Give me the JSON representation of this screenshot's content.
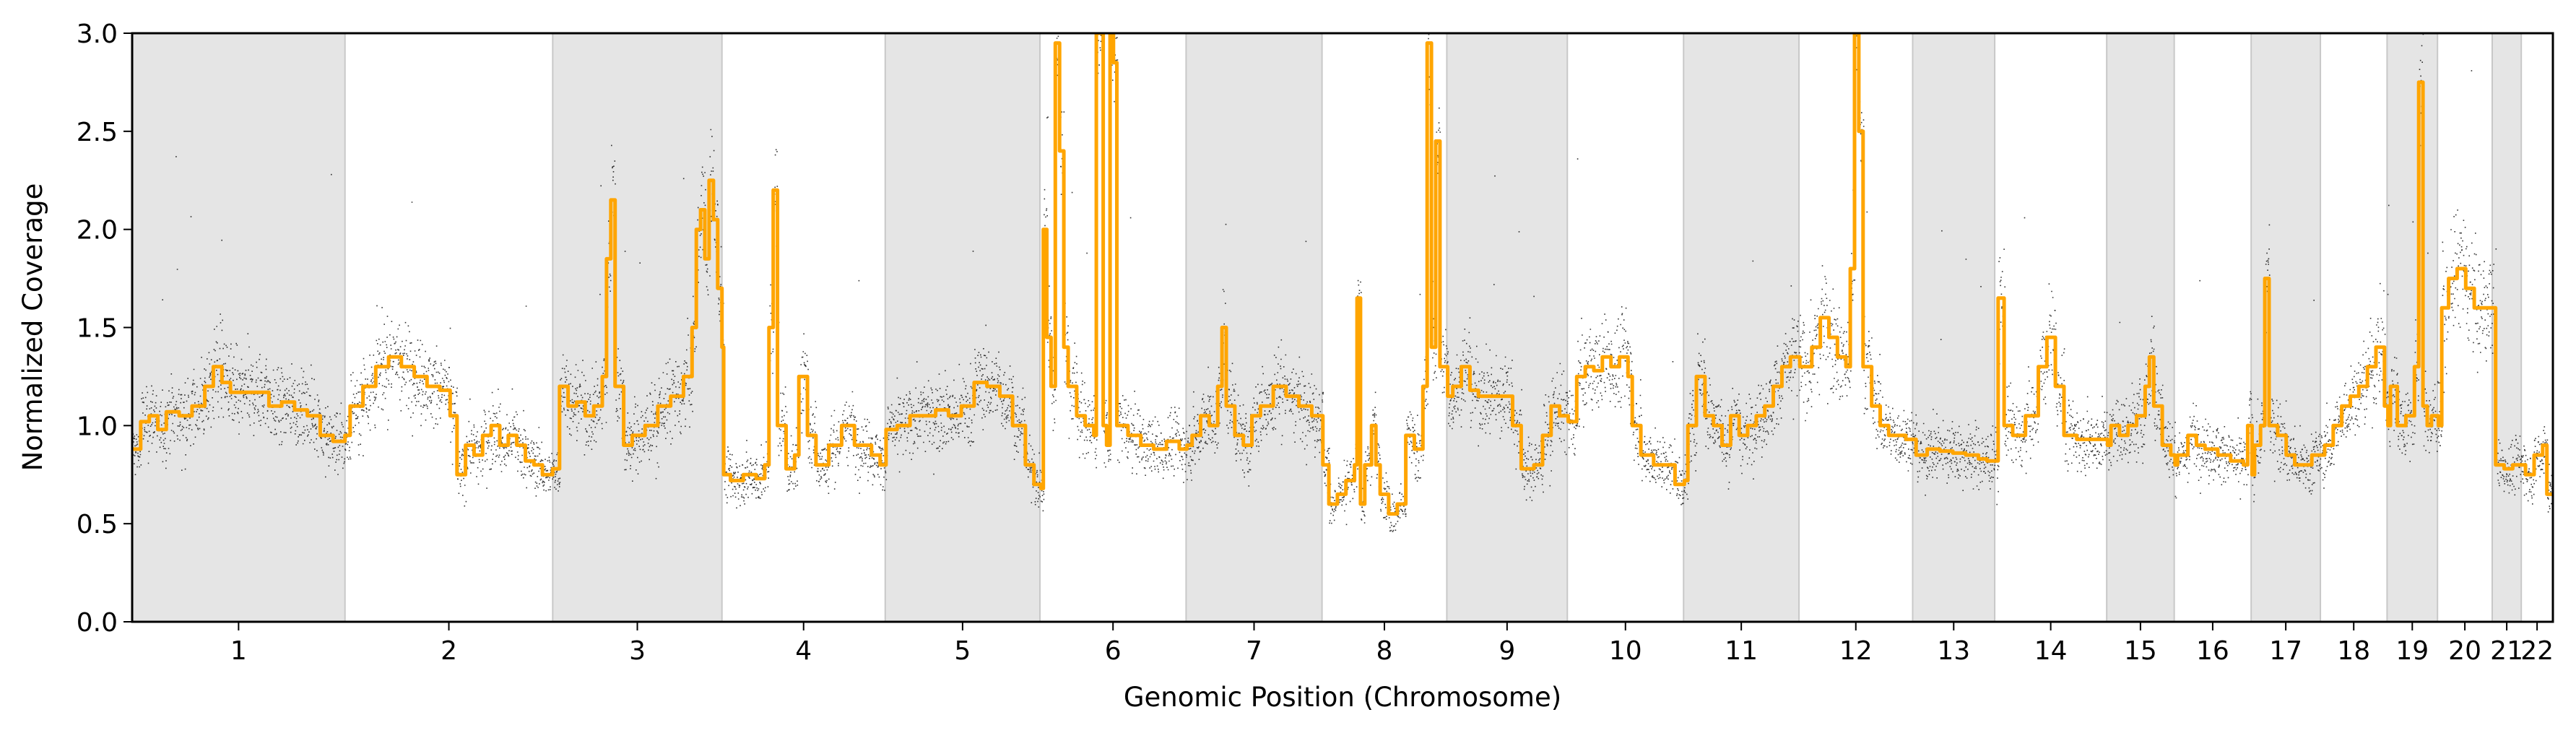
{
  "chart_data": {
    "type": "line",
    "title": "",
    "xlabel": "Genomic Position (Chromosome)",
    "ylabel": "Normalized Coverage",
    "ylim": [
      0,
      3
    ],
    "yticks": [
      "0.0",
      "0.5",
      "1.0",
      "1.5",
      "2.0",
      "2.5",
      "3.0"
    ],
    "grid": false,
    "legend": "none",
    "colors": {
      "segment_line": "#FFA500",
      "points": "#000000",
      "shade": "#E5E5E5",
      "shade_edge": "#C8C8C8"
    },
    "chromosomes": [
      {
        "label": "1",
        "size": 249,
        "shaded": true
      },
      {
        "label": "2",
        "size": 243,
        "shaded": false
      },
      {
        "label": "3",
        "size": 198,
        "shaded": true
      },
      {
        "label": "4",
        "size": 191,
        "shaded": false
      },
      {
        "label": "5",
        "size": 181,
        "shaded": true
      },
      {
        "label": "6",
        "size": 171,
        "shaded": false
      },
      {
        "label": "7",
        "size": 159,
        "shaded": true
      },
      {
        "label": "8",
        "size": 146,
        "shaded": false
      },
      {
        "label": "9",
        "size": 141,
        "shaded": true
      },
      {
        "label": "10",
        "size": 136,
        "shaded": false
      },
      {
        "label": "11",
        "size": 135,
        "shaded": true
      },
      {
        "label": "12",
        "size": 133,
        "shaded": false
      },
      {
        "label": "13",
        "size": 96,
        "shaded": true
      },
      {
        "label": "14",
        "size": 131,
        "shaded": false
      },
      {
        "label": "15",
        "size": 79,
        "shaded": true
      },
      {
        "label": "16",
        "size": 90,
        "shaded": false
      },
      {
        "label": "17",
        "size": 81,
        "shaded": true
      },
      {
        "label": "18",
        "size": 78,
        "shaded": false
      },
      {
        "label": "19",
        "size": 59,
        "shaded": true
      },
      {
        "label": "20",
        "size": 64,
        "shaded": false
      },
      {
        "label": "21",
        "size": 34,
        "shaded": true
      },
      {
        "label": "22",
        "size": 37,
        "shaded": false
      }
    ],
    "series": [
      {
        "type": "step",
        "points": [
          [
            0,
            0.88
          ],
          [
            10,
            1.02
          ],
          [
            20,
            1.05
          ],
          [
            30,
            0.98
          ],
          [
            40,
            1.07
          ],
          [
            55,
            1.05
          ],
          [
            70,
            1.1
          ],
          [
            85,
            1.2
          ],
          [
            95,
            1.3
          ],
          [
            105,
            1.22
          ],
          [
            115,
            1.17
          ],
          [
            130,
            1.17
          ],
          [
            145,
            1.17
          ],
          [
            160,
            1.1
          ],
          [
            175,
            1.12
          ],
          [
            190,
            1.08
          ],
          [
            205,
            1.05
          ],
          [
            220,
            0.95
          ],
          [
            235,
            0.92
          ],
          [
            249,
            0.95
          ],
          [
            255,
            1.1
          ],
          [
            270,
            1.2
          ],
          [
            285,
            1.3
          ],
          [
            300,
            1.35
          ],
          [
            315,
            1.3
          ],
          [
            330,
            1.25
          ],
          [
            345,
            1.2
          ],
          [
            360,
            1.18
          ],
          [
            372,
            1.05
          ],
          [
            380,
            0.75
          ],
          [
            390,
            0.9
          ],
          [
            400,
            0.85
          ],
          [
            410,
            0.95
          ],
          [
            420,
            1.0
          ],
          [
            430,
            0.9
          ],
          [
            440,
            0.95
          ],
          [
            450,
            0.9
          ],
          [
            460,
            0.82
          ],
          [
            470,
            0.8
          ],
          [
            480,
            0.75
          ],
          [
            492,
            0.78
          ],
          [
            500,
            1.2
          ],
          [
            510,
            1.1
          ],
          [
            520,
            1.12
          ],
          [
            530,
            1.05
          ],
          [
            540,
            1.1
          ],
          [
            550,
            1.25
          ],
          [
            555,
            1.85
          ],
          [
            560,
            2.15
          ],
          [
            565,
            1.2
          ],
          [
            575,
            0.9
          ],
          [
            585,
            0.95
          ],
          [
            600,
            1.0
          ],
          [
            615,
            1.1
          ],
          [
            630,
            1.15
          ],
          [
            645,
            1.25
          ],
          [
            655,
            1.5
          ],
          [
            660,
            2.0
          ],
          [
            665,
            2.1
          ],
          [
            670,
            1.85
          ],
          [
            675,
            2.25
          ],
          [
            680,
            2.05
          ],
          [
            685,
            1.7
          ],
          [
            690,
            1.4
          ],
          [
            692,
            0.75
          ],
          [
            700,
            0.72
          ],
          [
            715,
            0.75
          ],
          [
            730,
            0.73
          ],
          [
            740,
            0.8
          ],
          [
            745,
            1.5
          ],
          [
            750,
            2.2
          ],
          [
            755,
            1.0
          ],
          [
            765,
            0.78
          ],
          [
            775,
            0.85
          ],
          [
            780,
            1.25
          ],
          [
            790,
            0.95
          ],
          [
            800,
            0.8
          ],
          [
            815,
            0.9
          ],
          [
            830,
            1.0
          ],
          [
            845,
            0.9
          ],
          [
            865,
            0.85
          ],
          [
            875,
            0.8
          ],
          [
            882,
            0.98
          ],
          [
            895,
            1.0
          ],
          [
            910,
            1.05
          ],
          [
            925,
            1.05
          ],
          [
            940,
            1.08
          ],
          [
            955,
            1.05
          ],
          [
            970,
            1.1
          ],
          [
            985,
            1.22
          ],
          [
            1000,
            1.2
          ],
          [
            1015,
            1.15
          ],
          [
            1030,
            1.0
          ],
          [
            1045,
            0.8
          ],
          [
            1055,
            0.7
          ],
          [
            1063,
            0.68
          ],
          [
            1066,
            2.0
          ],
          [
            1070,
            1.45
          ],
          [
            1075,
            1.2
          ],
          [
            1080,
            2.95
          ],
          [
            1085,
            2.4
          ],
          [
            1090,
            1.4
          ],
          [
            1095,
            1.2
          ],
          [
            1105,
            1.05
          ],
          [
            1115,
            1.0
          ],
          [
            1125,
            0.95
          ],
          [
            1128,
            3.0
          ],
          [
            1132,
            3.0
          ],
          [
            1136,
            1.0
          ],
          [
            1140,
            0.9
          ],
          [
            1144,
            3.0
          ],
          [
            1148,
            2.85
          ],
          [
            1152,
            1.0
          ],
          [
            1165,
            0.95
          ],
          [
            1180,
            0.9
          ],
          [
            1195,
            0.88
          ],
          [
            1210,
            0.92
          ],
          [
            1225,
            0.88
          ],
          [
            1234,
            0.9
          ],
          [
            1240,
            0.95
          ],
          [
            1250,
            1.05
          ],
          [
            1260,
            1.0
          ],
          [
            1270,
            1.2
          ],
          [
            1275,
            1.5
          ],
          [
            1280,
            1.1
          ],
          [
            1290,
            0.95
          ],
          [
            1300,
            0.9
          ],
          [
            1310,
            1.05
          ],
          [
            1320,
            1.1
          ],
          [
            1335,
            1.2
          ],
          [
            1350,
            1.15
          ],
          [
            1365,
            1.1
          ],
          [
            1380,
            1.05
          ],
          [
            1393,
            0.8
          ],
          [
            1400,
            0.6
          ],
          [
            1410,
            0.65
          ],
          [
            1420,
            0.72
          ],
          [
            1430,
            0.8
          ],
          [
            1433,
            1.65
          ],
          [
            1437,
            0.6
          ],
          [
            1442,
            0.8
          ],
          [
            1450,
            1.0
          ],
          [
            1455,
            0.8
          ],
          [
            1460,
            0.65
          ],
          [
            1470,
            0.55
          ],
          [
            1480,
            0.6
          ],
          [
            1490,
            0.95
          ],
          [
            1500,
            0.88
          ],
          [
            1510,
            1.2
          ],
          [
            1515,
            2.95
          ],
          [
            1520,
            1.4
          ],
          [
            1525,
            2.45
          ],
          [
            1530,
            1.3
          ],
          [
            1539,
            1.15
          ],
          [
            1545,
            1.2
          ],
          [
            1555,
            1.3
          ],
          [
            1565,
            1.18
          ],
          [
            1575,
            1.15
          ],
          [
            1590,
            1.15
          ],
          [
            1605,
            1.15
          ],
          [
            1615,
            1.0
          ],
          [
            1625,
            0.78
          ],
          [
            1640,
            0.8
          ],
          [
            1650,
            0.95
          ],
          [
            1660,
            1.1
          ],
          [
            1670,
            1.05
          ],
          [
            1680,
            1.02
          ],
          [
            1690,
            1.25
          ],
          [
            1700,
            1.3
          ],
          [
            1710,
            1.28
          ],
          [
            1720,
            1.35
          ],
          [
            1730,
            1.3
          ],
          [
            1740,
            1.35
          ],
          [
            1750,
            1.25
          ],
          [
            1755,
            1.0
          ],
          [
            1765,
            0.85
          ],
          [
            1780,
            0.8
          ],
          [
            1795,
            0.8
          ],
          [
            1805,
            0.7
          ],
          [
            1816,
            0.72
          ],
          [
            1820,
            1.0
          ],
          [
            1830,
            1.25
          ],
          [
            1840,
            1.05
          ],
          [
            1850,
            1.0
          ],
          [
            1860,
            0.9
          ],
          [
            1870,
            1.05
          ],
          [
            1880,
            0.95
          ],
          [
            1890,
            1.0
          ],
          [
            1900,
            1.05
          ],
          [
            1910,
            1.1
          ],
          [
            1920,
            1.2
          ],
          [
            1930,
            1.3
          ],
          [
            1940,
            1.35
          ],
          [
            1951,
            1.3
          ],
          [
            1955,
            1.3
          ],
          [
            1965,
            1.4
          ],
          [
            1975,
            1.55
          ],
          [
            1985,
            1.45
          ],
          [
            1995,
            1.35
          ],
          [
            2005,
            1.3
          ],
          [
            2010,
            1.8
          ],
          [
            2015,
            3.0
          ],
          [
            2020,
            2.5
          ],
          [
            2025,
            1.3
          ],
          [
            2035,
            1.1
          ],
          [
            2045,
            1.0
          ],
          [
            2055,
            0.95
          ],
          [
            2065,
            0.95
          ],
          [
            2075,
            0.93
          ],
          [
            2084,
            0.93
          ],
          [
            2087,
            0.85
          ],
          [
            2100,
            0.88
          ],
          [
            2115,
            0.87
          ],
          [
            2130,
            0.86
          ],
          [
            2145,
            0.85
          ],
          [
            2160,
            0.83
          ],
          [
            2170,
            0.82
          ],
          [
            2180,
            0.82
          ],
          [
            2183,
            1.65
          ],
          [
            2190,
            1.0
          ],
          [
            2200,
            0.95
          ],
          [
            2215,
            1.05
          ],
          [
            2230,
            1.3
          ],
          [
            2240,
            1.45
          ],
          [
            2250,
            1.2
          ],
          [
            2260,
            0.95
          ],
          [
            2275,
            0.93
          ],
          [
            2290,
            0.93
          ],
          [
            2305,
            0.93
          ],
          [
            2311,
            0.9
          ],
          [
            2315,
            1.0
          ],
          [
            2325,
            0.95
          ],
          [
            2335,
            1.0
          ],
          [
            2345,
            1.05
          ],
          [
            2355,
            1.2
          ],
          [
            2360,
            1.35
          ],
          [
            2365,
            1.1
          ],
          [
            2375,
            0.9
          ],
          [
            2385,
            0.85
          ],
          [
            2390,
            0.8
          ],
          [
            2393,
            0.85
          ],
          [
            2405,
            0.95
          ],
          [
            2415,
            0.9
          ],
          [
            2425,
            0.88
          ],
          [
            2440,
            0.85
          ],
          [
            2455,
            0.82
          ],
          [
            2470,
            0.8
          ],
          [
            2475,
            1.0
          ],
          [
            2480,
            0.75
          ],
          [
            2483,
            0.9
          ],
          [
            2490,
            1.0
          ],
          [
            2495,
            1.75
          ],
          [
            2500,
            1.0
          ],
          [
            2510,
            0.95
          ],
          [
            2520,
            0.85
          ],
          [
            2530,
            0.8
          ],
          [
            2540,
            0.8
          ],
          [
            2550,
            0.85
          ],
          [
            2561,
            0.85
          ],
          [
            2565,
            0.9
          ],
          [
            2575,
            1.0
          ],
          [
            2585,
            1.1
          ],
          [
            2595,
            1.15
          ],
          [
            2605,
            1.2
          ],
          [
            2615,
            1.3
          ],
          [
            2625,
            1.4
          ],
          [
            2635,
            1.1
          ],
          [
            2639,
            1.0
          ],
          [
            2642,
            1.2
          ],
          [
            2650,
            1.0
          ],
          [
            2660,
            1.05
          ],
          [
            2670,
            1.3
          ],
          [
            2675,
            2.75
          ],
          [
            2680,
            1.1
          ],
          [
            2685,
            1.0
          ],
          [
            2690,
            1.05
          ],
          [
            2698,
            1.0
          ],
          [
            2702,
            1.6
          ],
          [
            2710,
            1.75
          ],
          [
            2720,
            1.8
          ],
          [
            2730,
            1.7
          ],
          [
            2740,
            1.6
          ],
          [
            2755,
            1.6
          ],
          [
            2762,
            1.6
          ],
          [
            2765,
            0.8
          ],
          [
            2775,
            0.78
          ],
          [
            2785,
            0.8
          ],
          [
            2796,
            0.8
          ],
          [
            2800,
            0.75
          ],
          [
            2810,
            0.85
          ],
          [
            2820,
            0.9
          ],
          [
            2825,
            0.65
          ],
          [
            2833,
            0.6
          ]
        ]
      }
    ]
  }
}
